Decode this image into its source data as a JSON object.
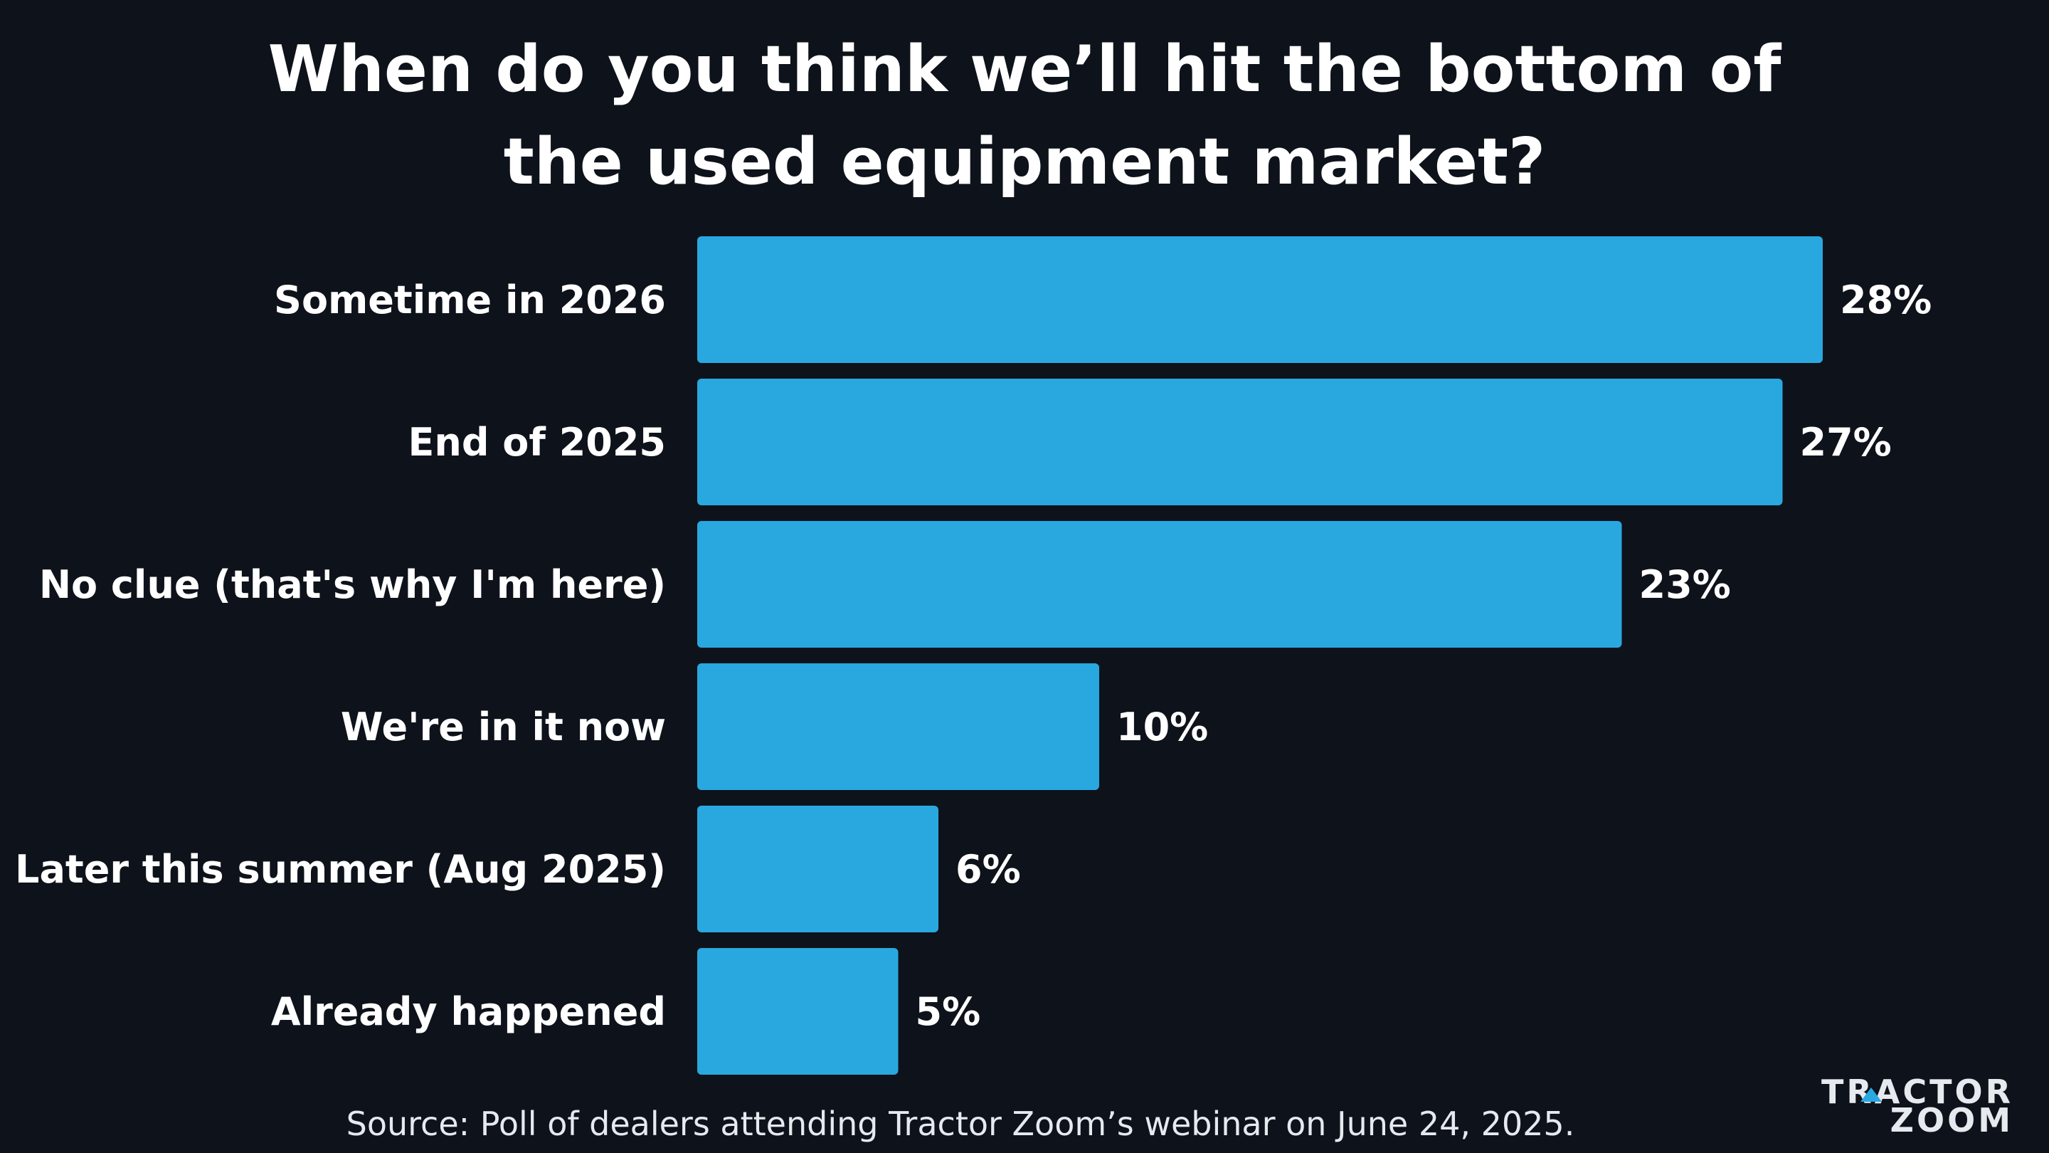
{
  "chart_data": {
    "type": "bar",
    "orientation": "horizontal",
    "title": [
      "When do you think we’ll hit the bottom of",
      "the used equipment market?"
    ],
    "categories": [
      "Sometime in 2026",
      "End of 2025",
      "No clue (that's why I'm here)",
      "We're in it now",
      "Later this summer (Aug 2025)",
      "Already happened"
    ],
    "values": [
      28,
      27,
      23,
      10,
      6,
      5
    ],
    "value_labels": [
      "28%",
      "27%",
      "23%",
      "10%",
      "6%",
      "5%"
    ],
    "unit": "%",
    "xlim": [
      0,
      28
    ],
    "xlabel": "",
    "ylabel": "",
    "grid": false,
    "source": "Source: Poll of dealers attending Tractor Zoom’s webinar on June 24, 2025."
  },
  "logo": {
    "line1": "TRACTOR",
    "line2": "ZOOM"
  },
  "colors": {
    "background": "#0e121b",
    "bar": "#29a8e0",
    "text": "#ffffff",
    "logo_accent": "#29a8e0"
  }
}
